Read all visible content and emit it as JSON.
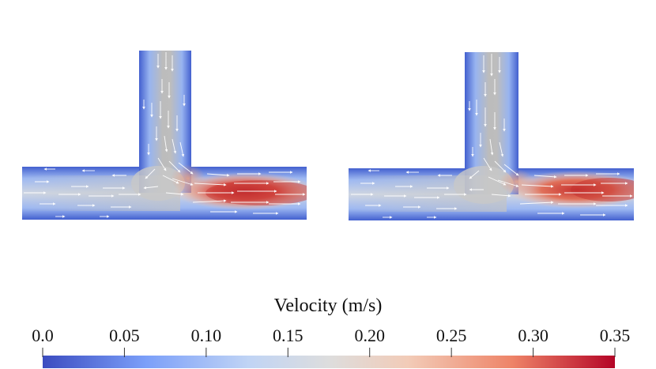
{
  "figure": {
    "panels": [
      {
        "name": "t-junction-left",
        "inlet": "top",
        "outlets": [
          "left",
          "right"
        ]
      },
      {
        "name": "t-junction-right",
        "inlet": "top",
        "outlets": [
          "left",
          "right"
        ]
      }
    ]
  },
  "colorbar": {
    "title": "Velocity (m/s)",
    "ticks": [
      "0.0",
      "0.05",
      "0.10",
      "0.15",
      "0.20",
      "0.25",
      "0.30",
      "0.35"
    ],
    "min": 0.0,
    "max": 0.35,
    "colors": [
      "#3b4cc0",
      "#7b9ff9",
      "#c0d4f5",
      "#dddddd",
      "#f2cbb7",
      "#ee8468",
      "#b40426"
    ]
  }
}
